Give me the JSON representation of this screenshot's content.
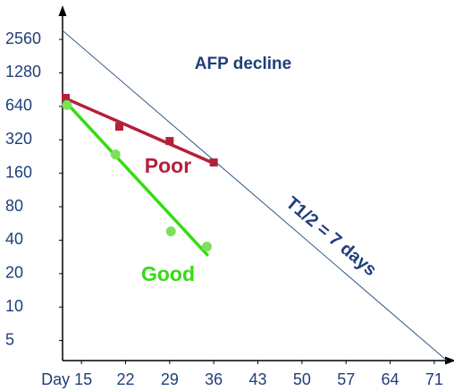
{
  "chart_data": {
    "type": "line",
    "title": "AFP decline",
    "log_scale_y": true,
    "log_base": 2,
    "xlim": [
      12,
      73
    ],
    "ylim": [
      3.3,
      4000
    ],
    "xticks": [
      {
        "value": 15,
        "label": "Day 15"
      },
      22,
      29,
      36,
      43,
      50,
      57,
      64,
      71
    ],
    "yticks": [
      5,
      10,
      20,
      40,
      80,
      160,
      320,
      640,
      1280,
      2560
    ],
    "series": [
      {
        "name": "Poor",
        "color": "#b3203a",
        "marker": "square",
        "x": [
          12.5,
          21,
          29,
          36
        ],
        "values": [
          762,
          420,
          312,
          200
        ],
        "trend": {
          "x": [
            12.3,
            35.7
          ],
          "values": [
            762,
            200
          ]
        }
      },
      {
        "name": "Good",
        "color": "#33dd11",
        "marker": "circle",
        "x": [
          12.7,
          20.4,
          29.2,
          34.9
        ],
        "values": [
          656,
          236,
          48,
          35
        ],
        "trend": {
          "x": [
            12.3,
            35.1
          ],
          "values": [
            720,
            29
          ]
        }
      }
    ],
    "reference_line": {
      "label": "T1/2 = 7 days",
      "color": "#2e5a8a",
      "x": [
        12,
        73
      ],
      "values": [
        3080,
        3.3
      ]
    }
  }
}
